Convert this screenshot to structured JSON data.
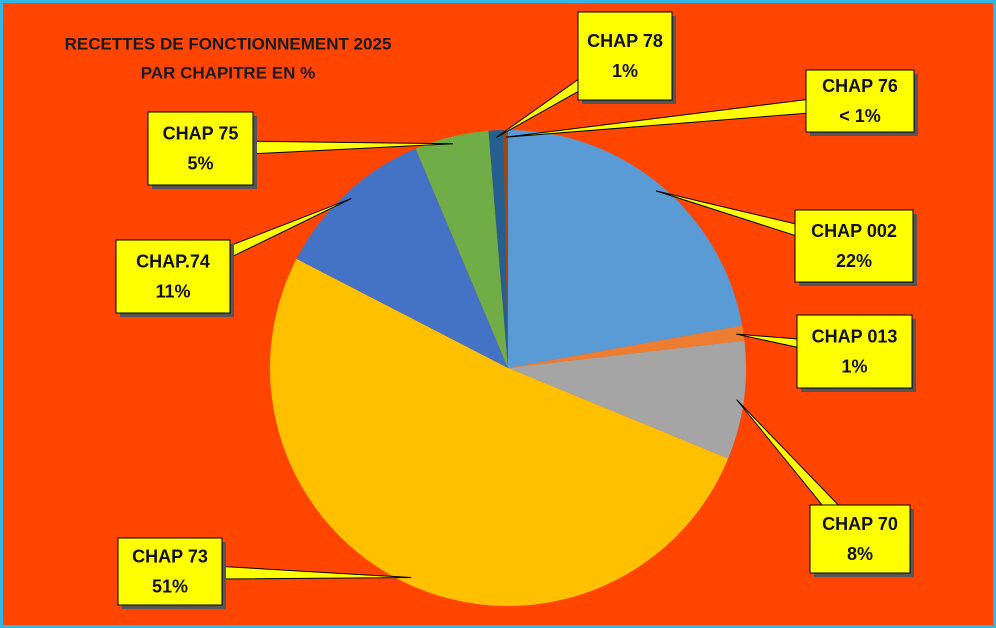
{
  "chart_data": {
    "type": "pie",
    "title": "RECETTES DE FONCTIONNEMENT 2025",
    "subtitle": "PAR CHAPITRE EN %",
    "categories": [
      "CHAP 002",
      "CHAP 013",
      "CHAP 70",
      "CHAP 73",
      "CHAP.74",
      "CHAP 75",
      "CHAP 78",
      "CHAP 76"
    ],
    "values": [
      22,
      1,
      8,
      51,
      11,
      5,
      1,
      0.3
    ],
    "value_labels": [
      "22%",
      "1%",
      "8%",
      "51%",
      "11%",
      "5%",
      "1%",
      "< 1%"
    ],
    "colors": [
      "#5b9bd5",
      "#ed7d31",
      "#a5a5a5",
      "#ffc000",
      "#4472c4",
      "#70ad47",
      "#255e91",
      "#9e480e"
    ]
  }
}
